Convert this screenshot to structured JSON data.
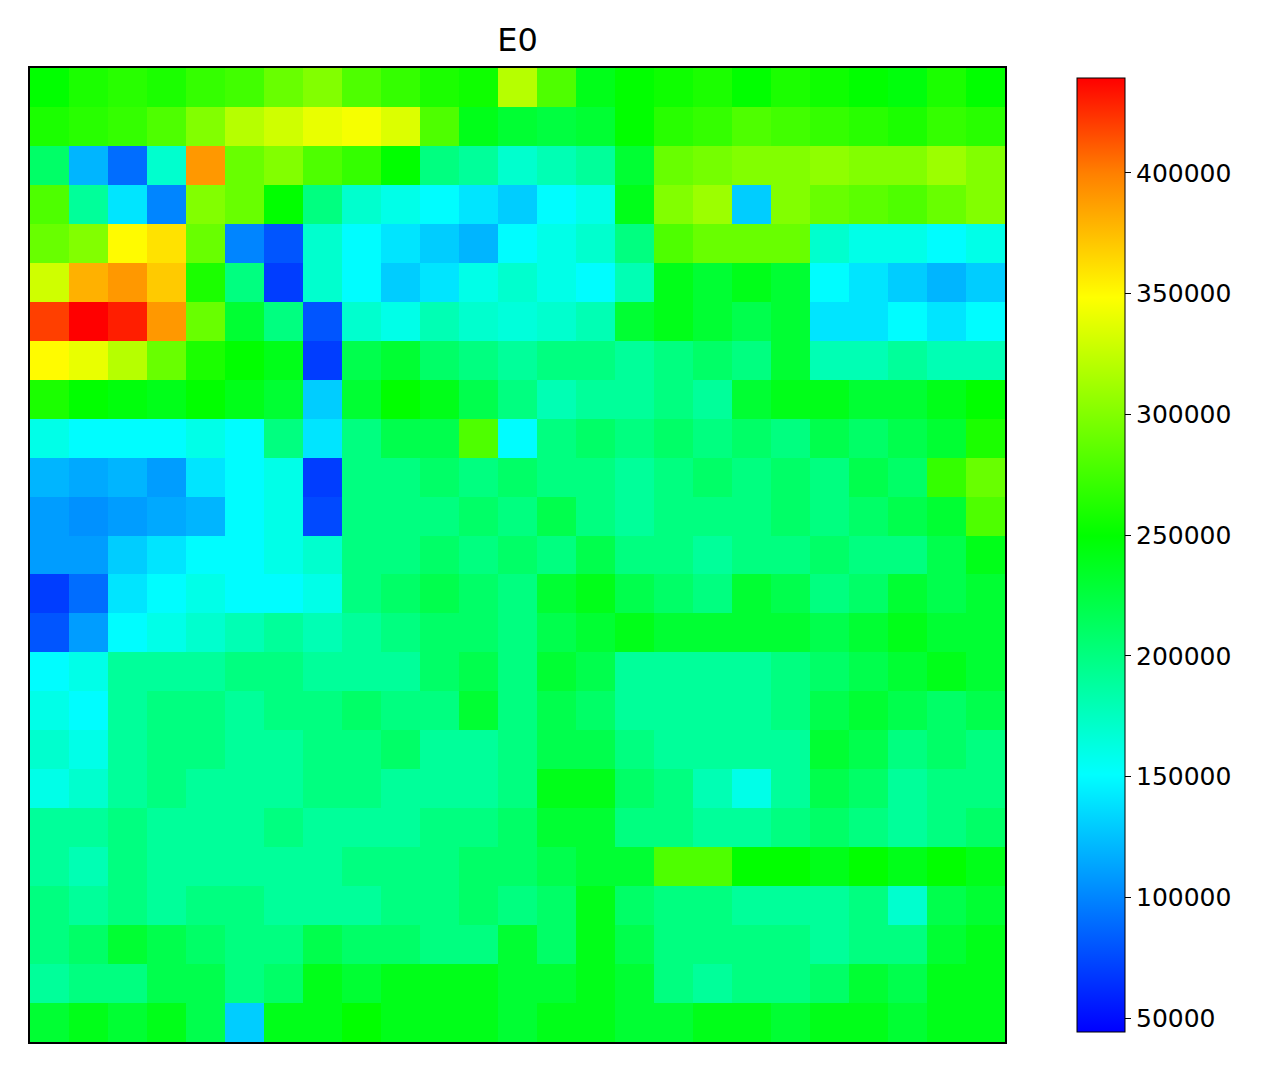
{
  "chart_data": {
    "type": "heatmap",
    "title": "E0",
    "tick_labels": false,
    "zlim": [
      44300,
      439300
    ],
    "zticks": [
      50000,
      100000,
      150000,
      200000,
      250000,
      300000,
      350000,
      400000
    ],
    "cells": [
      [
        250000,
        260000,
        265000,
        260000,
        270000,
        275000,
        290000,
        300000,
        280000,
        270000,
        260000,
        255000,
        320000,
        280000,
        240000,
        250000,
        255000,
        260000,
        250000,
        260000,
        255000,
        250000,
        245000,
        260000,
        250000
      ],
      [
        260000,
        265000,
        270000,
        280000,
        300000,
        320000,
        330000,
        340000,
        345000,
        335000,
        280000,
        240000,
        230000,
        225000,
        230000,
        250000,
        265000,
        270000,
        280000,
        275000,
        270000,
        265000,
        260000,
        270000,
        265000
      ],
      [
        210000,
        120000,
        90000,
        170000,
        390000,
        290000,
        300000,
        280000,
        270000,
        250000,
        200000,
        190000,
        170000,
        180000,
        190000,
        230000,
        290000,
        295000,
        300000,
        300000,
        305000,
        300000,
        300000,
        310000,
        300000
      ],
      [
        280000,
        190000,
        140000,
        100000,
        300000,
        290000,
        250000,
        200000,
        170000,
        160000,
        150000,
        140000,
        130000,
        150000,
        160000,
        240000,
        300000,
        310000,
        130000,
        300000,
        290000,
        285000,
        280000,
        290000,
        300000
      ],
      [
        290000,
        300000,
        350000,
        360000,
        290000,
        100000,
        80000,
        170000,
        150000,
        140000,
        130000,
        120000,
        150000,
        160000,
        170000,
        200000,
        280000,
        290000,
        290000,
        290000,
        170000,
        160000,
        160000,
        150000,
        160000
      ],
      [
        330000,
        380000,
        390000,
        370000,
        260000,
        200000,
        70000,
        170000,
        150000,
        130000,
        140000,
        160000,
        170000,
        160000,
        150000,
        180000,
        240000,
        230000,
        240000,
        230000,
        150000,
        140000,
        130000,
        120000,
        130000
      ],
      [
        420000,
        440000,
        430000,
        390000,
        290000,
        230000,
        200000,
        80000,
        170000,
        160000,
        180000,
        170000,
        165000,
        170000,
        180000,
        230000,
        240000,
        230000,
        220000,
        230000,
        140000,
        140000,
        150000,
        140000,
        150000
      ],
      [
        350000,
        340000,
        320000,
        290000,
        260000,
        250000,
        240000,
        70000,
        220000,
        230000,
        210000,
        200000,
        190000,
        200000,
        200000,
        190000,
        200000,
        210000,
        200000,
        230000,
        180000,
        180000,
        190000,
        180000,
        180000
      ],
      [
        260000,
        250000,
        245000,
        240000,
        250000,
        240000,
        230000,
        130000,
        230000,
        250000,
        240000,
        220000,
        200000,
        180000,
        190000,
        190000,
        200000,
        190000,
        230000,
        240000,
        240000,
        230000,
        230000,
        240000,
        250000
      ],
      [
        160000,
        150000,
        150000,
        150000,
        160000,
        150000,
        200000,
        140000,
        200000,
        220000,
        220000,
        280000,
        150000,
        200000,
        210000,
        200000,
        210000,
        200000,
        210000,
        200000,
        220000,
        210000,
        220000,
        230000,
        260000
      ],
      [
        120000,
        115000,
        120000,
        110000,
        140000,
        150000,
        160000,
        70000,
        200000,
        200000,
        210000,
        200000,
        210000,
        200000,
        200000,
        190000,
        200000,
        210000,
        200000,
        210000,
        200000,
        220000,
        210000,
        270000,
        290000
      ],
      [
        110000,
        105000,
        110000,
        115000,
        120000,
        150000,
        160000,
        75000,
        200000,
        200000,
        200000,
        210000,
        200000,
        220000,
        200000,
        190000,
        200000,
        200000,
        200000,
        210000,
        200000,
        210000,
        220000,
        230000,
        280000
      ],
      [
        110000,
        110000,
        130000,
        140000,
        150000,
        150000,
        160000,
        170000,
        200000,
        200000,
        210000,
        200000,
        210000,
        200000,
        220000,
        200000,
        200000,
        190000,
        200000,
        200000,
        210000,
        200000,
        200000,
        220000,
        240000
      ],
      [
        70000,
        90000,
        140000,
        150000,
        160000,
        150000,
        150000,
        160000,
        200000,
        210000,
        220000,
        210000,
        200000,
        230000,
        240000,
        220000,
        210000,
        200000,
        230000,
        220000,
        200000,
        210000,
        230000,
        220000,
        230000
      ],
      [
        80000,
        110000,
        150000,
        160000,
        170000,
        180000,
        190000,
        180000,
        190000,
        200000,
        210000,
        210000,
        200000,
        220000,
        230000,
        240000,
        230000,
        230000,
        230000,
        230000,
        220000,
        230000,
        240000,
        230000,
        230000
      ],
      [
        150000,
        160000,
        190000,
        190000,
        190000,
        200000,
        200000,
        190000,
        190000,
        190000,
        210000,
        220000,
        200000,
        230000,
        220000,
        190000,
        190000,
        190000,
        190000,
        200000,
        210000,
        220000,
        230000,
        240000,
        230000
      ],
      [
        160000,
        150000,
        190000,
        200000,
        200000,
        190000,
        200000,
        200000,
        210000,
        200000,
        200000,
        230000,
        200000,
        220000,
        210000,
        190000,
        190000,
        190000,
        190000,
        200000,
        220000,
        230000,
        220000,
        210000,
        220000
      ],
      [
        170000,
        160000,
        190000,
        200000,
        200000,
        190000,
        190000,
        200000,
        200000,
        210000,
        190000,
        190000,
        200000,
        220000,
        220000,
        200000,
        190000,
        190000,
        190000,
        190000,
        230000,
        220000,
        200000,
        210000,
        200000
      ],
      [
        160000,
        170000,
        190000,
        200000,
        190000,
        190000,
        190000,
        200000,
        200000,
        190000,
        190000,
        190000,
        200000,
        240000,
        240000,
        210000,
        200000,
        180000,
        160000,
        190000,
        220000,
        210000,
        190000,
        200000,
        200000
      ],
      [
        190000,
        190000,
        200000,
        190000,
        190000,
        190000,
        200000,
        190000,
        190000,
        190000,
        200000,
        200000,
        210000,
        230000,
        230000,
        200000,
        200000,
        190000,
        190000,
        200000,
        210000,
        200000,
        190000,
        200000,
        210000
      ],
      [
        190000,
        180000,
        200000,
        190000,
        190000,
        190000,
        190000,
        190000,
        200000,
        200000,
        200000,
        210000,
        210000,
        220000,
        230000,
        230000,
        280000,
        280000,
        250000,
        250000,
        240000,
        250000,
        240000,
        250000,
        240000
      ],
      [
        200000,
        190000,
        200000,
        190000,
        200000,
        200000,
        190000,
        190000,
        190000,
        200000,
        200000,
        210000,
        200000,
        210000,
        240000,
        210000,
        200000,
        200000,
        190000,
        190000,
        190000,
        200000,
        170000,
        220000,
        230000
      ],
      [
        200000,
        210000,
        230000,
        220000,
        210000,
        200000,
        200000,
        220000,
        210000,
        210000,
        200000,
        200000,
        230000,
        210000,
        240000,
        220000,
        200000,
        200000,
        200000,
        200000,
        190000,
        200000,
        200000,
        230000,
        240000
      ],
      [
        190000,
        200000,
        200000,
        220000,
        220000,
        200000,
        210000,
        240000,
        230000,
        240000,
        240000,
        240000,
        230000,
        230000,
        240000,
        230000,
        200000,
        190000,
        200000,
        200000,
        210000,
        230000,
        220000,
        240000,
        240000
      ],
      [
        230000,
        240000,
        230000,
        240000,
        220000,
        130000,
        240000,
        240000,
        250000,
        240000,
        240000,
        240000,
        230000,
        240000,
        240000,
        230000,
        230000,
        240000,
        240000,
        230000,
        240000,
        240000,
        230000,
        240000,
        240000
      ]
    ]
  }
}
